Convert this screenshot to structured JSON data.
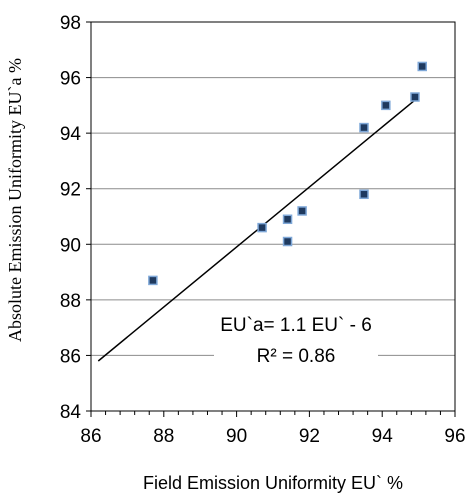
{
  "chart_data": {
    "type": "scatter",
    "title": "",
    "xlabel": "Field Emission Uniformity EU` %",
    "ylabel": "Absolute Emission Uniformity EU`a %",
    "xlim": [
      86,
      96
    ],
    "ylim": [
      84,
      98
    ],
    "xticks": [
      "86",
      "88",
      "90",
      "92",
      "94",
      "96"
    ],
    "yticks": [
      "84",
      "86",
      "88",
      "90",
      "92",
      "94",
      "96",
      "98"
    ],
    "grid": "horizontal",
    "series": [
      {
        "points": [
          {
            "x": 87.7,
            "y": 88.7
          },
          {
            "x": 90.7,
            "y": 90.6
          },
          {
            "x": 91.4,
            "y": 90.9
          },
          {
            "x": 91.4,
            "y": 90.1
          },
          {
            "x": 91.8,
            "y": 91.2
          },
          {
            "x": 93.5,
            "y": 94.2
          },
          {
            "x": 93.5,
            "y": 91.8
          },
          {
            "x": 94.1,
            "y": 95.0
          },
          {
            "x": 94.9,
            "y": 95.3
          },
          {
            "x": 95.1,
            "y": 96.4
          }
        ]
      }
    ],
    "trendline": {
      "x": [
        86.2,
        95.0
      ],
      "y": [
        85.8,
        95.3
      ]
    },
    "annotation": {
      "equation": "EU`a= 1.1 EU` - 6",
      "r2": "R² = 0.86"
    },
    "marker_color": "#1f3a5f",
    "marker_edge_color": "#7fa8d8"
  }
}
